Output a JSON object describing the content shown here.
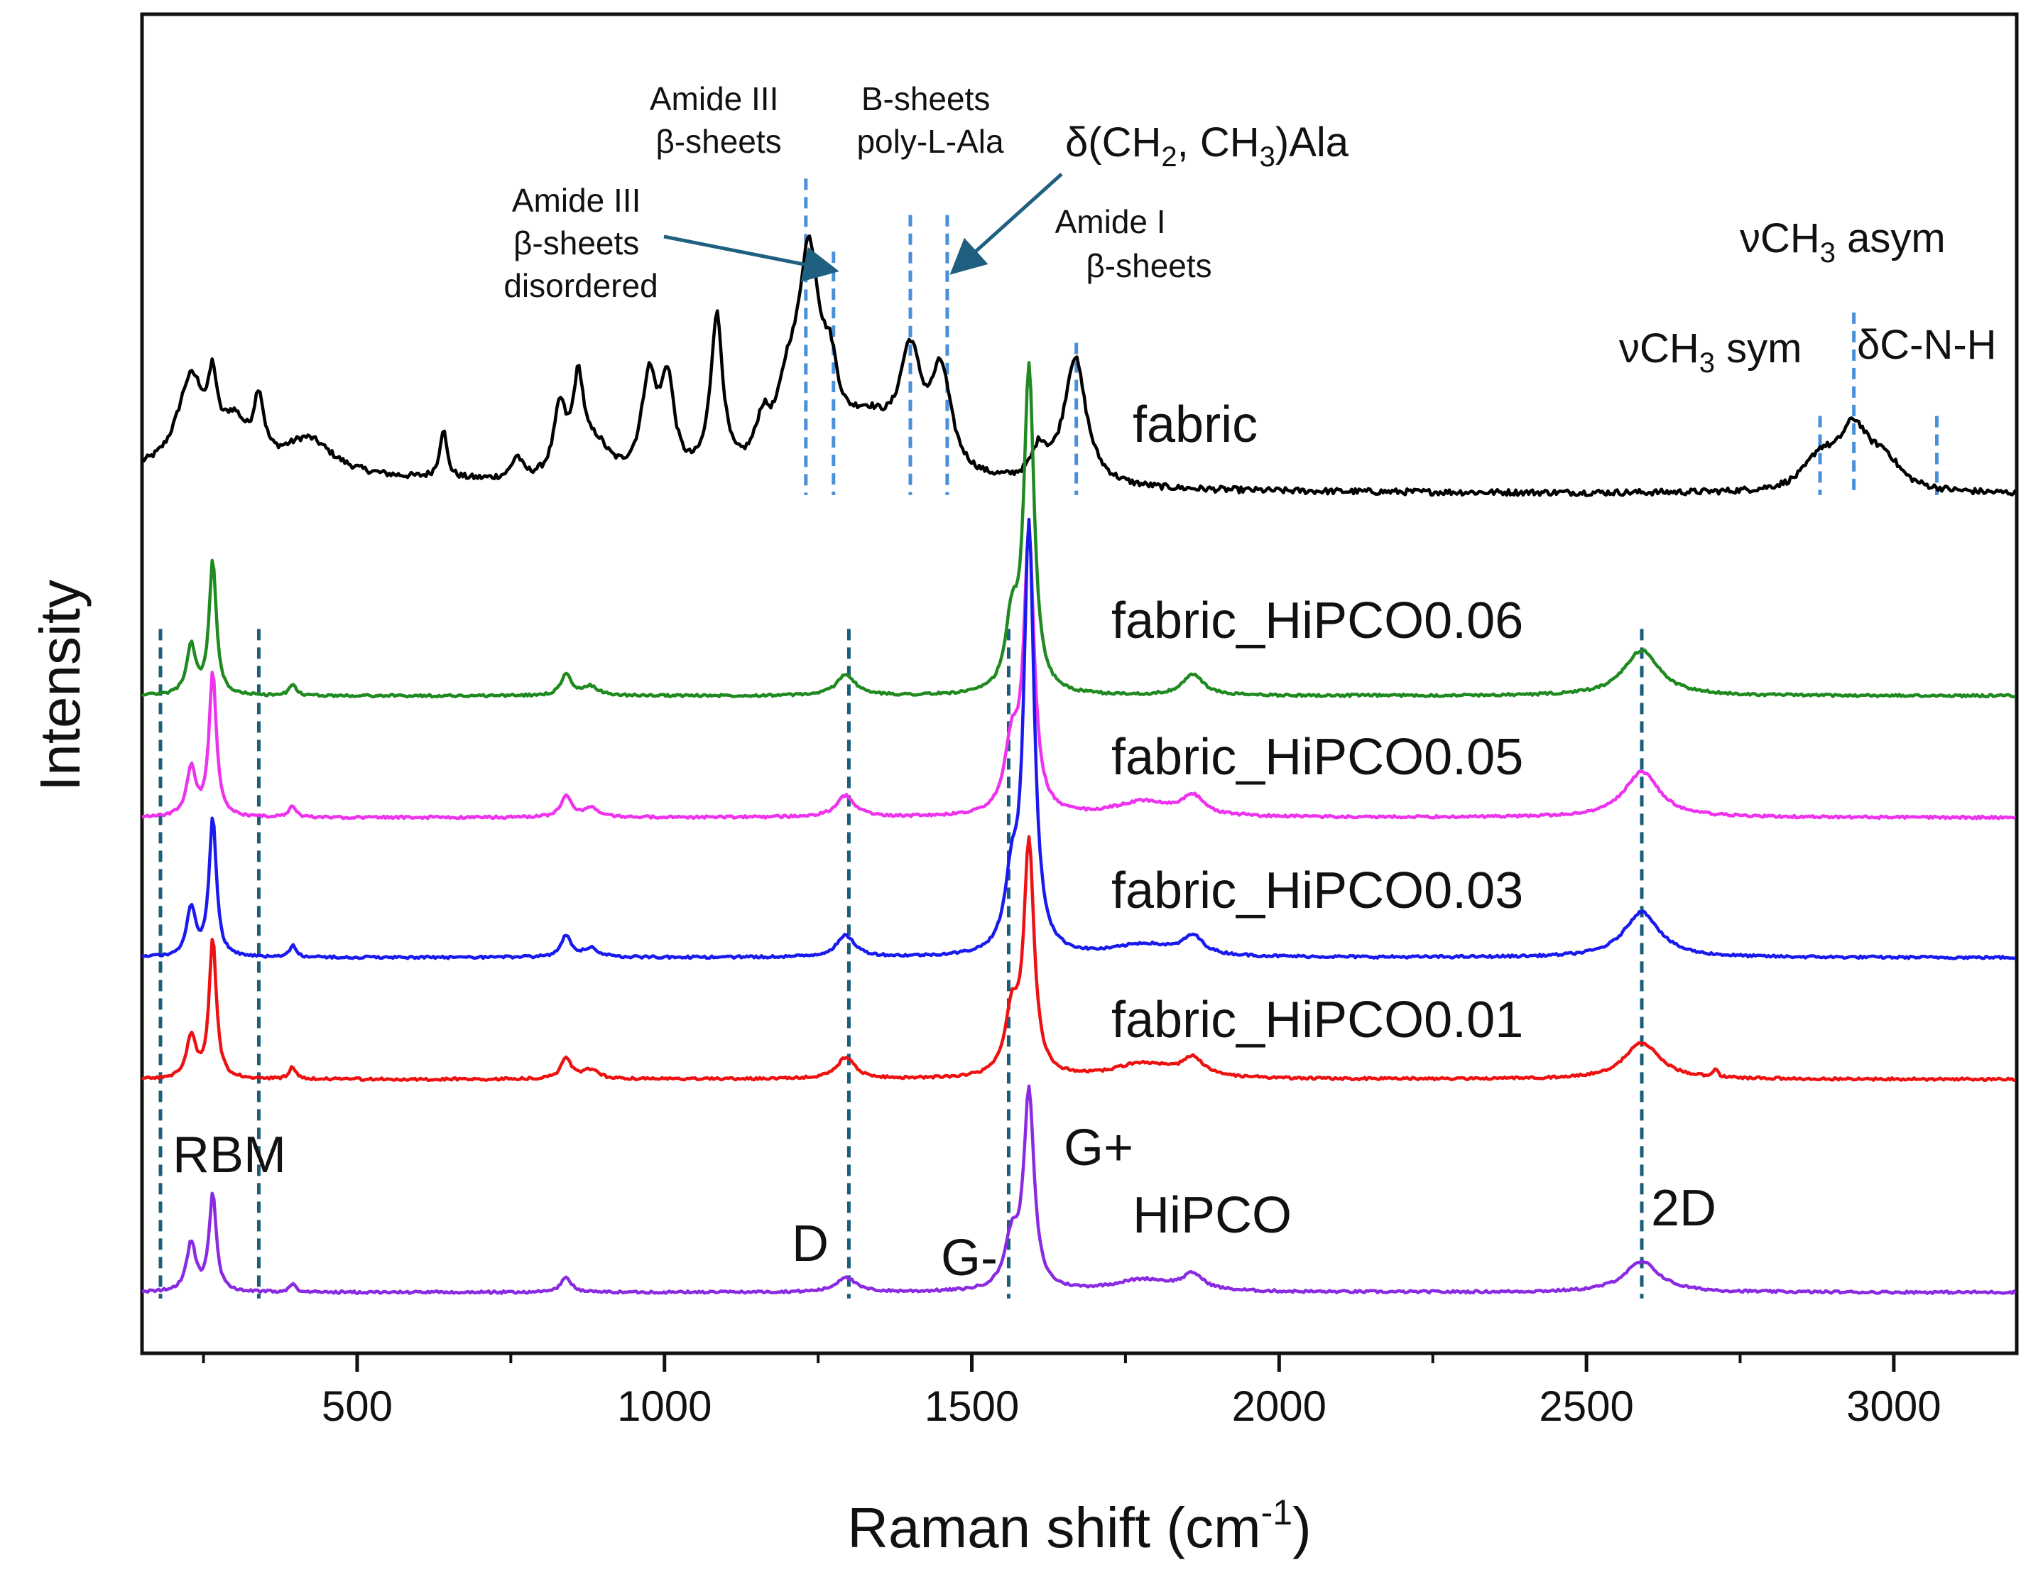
{
  "chart_data": {
    "type": "line",
    "title": "",
    "xlabel": "Raman shift (cm",
    "xlabel_sup": "-1",
    "xlabel_end": ")",
    "ylabel": "Intensity",
    "xlim": [
      150,
      3200
    ],
    "x_ticks": [
      500,
      1000,
      1500,
      2000,
      2500,
      3000
    ],
    "x_tick_labels": [
      "500",
      "1000",
      "1500",
      "2000",
      "2500",
      "3000"
    ],
    "grid": false,
    "legend": "inline labels at right of each trace",
    "series": [
      {
        "name": "fabric",
        "color": "#000000",
        "baseline": 9.6,
        "peaks": [
          [
            230,
            1.5,
            28
          ],
          [
            265,
            1.0,
            8
          ],
          [
            300,
            0.7,
            25
          ],
          [
            340,
            1.0,
            10
          ],
          [
            420,
            0.6,
            50
          ],
          [
            640,
            0.8,
            7
          ],
          [
            760,
            0.35,
            10
          ],
          [
            830,
            1.1,
            12
          ],
          [
            860,
            1.5,
            11
          ],
          [
            890,
            0.5,
            25
          ],
          [
            975,
            1.6,
            15
          ],
          [
            1005,
            1.5,
            13
          ],
          [
            1085,
            2.6,
            12
          ],
          [
            1160,
            0.7,
            15
          ],
          [
            1200,
            1.0,
            20
          ],
          [
            1235,
            3.4,
            22
          ],
          [
            1270,
            1.0,
            15
          ],
          [
            1330,
            0.9,
            55
          ],
          [
            1400,
            1.8,
            22
          ],
          [
            1450,
            1.6,
            20
          ],
          [
            1610,
            0.5,
            15
          ],
          [
            1668,
            2.1,
            22
          ],
          [
            2880,
            0.5,
            30
          ],
          [
            2935,
            1.0,
            30
          ],
          [
            2985,
            0.45,
            30
          ]
        ]
      },
      {
        "name": "fabric_HiPCO0.06",
        "color": "#1f8a1f",
        "baseline": 6.3,
        "peaks": [
          [
            230,
            0.8,
            9
          ],
          [
            265,
            2.2,
            7
          ],
          [
            395,
            0.2,
            6
          ],
          [
            840,
            0.35,
            10
          ],
          [
            880,
            0.15,
            15
          ],
          [
            1295,
            0.35,
            18
          ],
          [
            1565,
            1.1,
            12
          ],
          [
            1593,
            5.3,
            10
          ],
          [
            1860,
            0.35,
            20
          ],
          [
            2590,
            0.75,
            35
          ]
        ]
      },
      {
        "name": "fabric_HiPCO0.05",
        "color": "#ee33ee",
        "baseline": 4.3,
        "peaks": [
          [
            230,
            0.8,
            9
          ],
          [
            265,
            2.4,
            7
          ],
          [
            395,
            0.2,
            6
          ],
          [
            840,
            0.35,
            10
          ],
          [
            880,
            0.15,
            15
          ],
          [
            1295,
            0.35,
            18
          ],
          [
            1565,
            1.1,
            14
          ],
          [
            1593,
            4.5,
            10
          ],
          [
            1780,
            0.25,
            60
          ],
          [
            1860,
            0.3,
            20
          ],
          [
            2590,
            0.75,
            35
          ]
        ]
      },
      {
        "name": "fabric_HiPCO0.03",
        "color": "#1a1aee",
        "baseline": 2.0,
        "peaks": [
          [
            230,
            0.8,
            9
          ],
          [
            265,
            2.3,
            7
          ],
          [
            395,
            0.2,
            6
          ],
          [
            840,
            0.35,
            10
          ],
          [
            880,
            0.15,
            15
          ],
          [
            1295,
            0.35,
            18
          ],
          [
            1565,
            1.1,
            13
          ],
          [
            1593,
            7.0,
            10
          ],
          [
            1780,
            0.2,
            60
          ],
          [
            1860,
            0.3,
            20
          ],
          [
            2590,
            0.75,
            35
          ]
        ]
      },
      {
        "name": "fabric_HiPCO0.01",
        "color": "#ee1111",
        "baseline": 0.0,
        "peaks": [
          [
            230,
            0.7,
            9
          ],
          [
            265,
            2.3,
            7
          ],
          [
            395,
            0.2,
            6
          ],
          [
            840,
            0.35,
            10
          ],
          [
            880,
            0.15,
            15
          ],
          [
            1295,
            0.35,
            18
          ],
          [
            1565,
            1.0,
            13
          ],
          [
            1593,
            3.8,
            10
          ],
          [
            1780,
            0.25,
            60
          ],
          [
            1860,
            0.3,
            20
          ],
          [
            2590,
            0.6,
            35
          ],
          [
            2710,
            0.15,
            4
          ]
        ]
      },
      {
        "name": "HiPCO",
        "color": "#8a2be2",
        "baseline": -3.5,
        "peaks": [
          [
            230,
            0.8,
            9
          ],
          [
            265,
            1.6,
            7
          ],
          [
            395,
            0.15,
            6
          ],
          [
            840,
            0.25,
            10
          ],
          [
            1295,
            0.25,
            18
          ],
          [
            1565,
            0.8,
            14
          ],
          [
            1593,
            3.2,
            10
          ],
          [
            1780,
            0.2,
            60
          ],
          [
            1860,
            0.25,
            20
          ],
          [
            2590,
            0.5,
            35
          ]
        ]
      }
    ],
    "reference_lines": {
      "color": "#1b5e7a",
      "x": [
        180,
        340,
        1300,
        1560,
        2590
      ]
    },
    "annotation_lines": {
      "color": "#4a90d9",
      "x": [
        1230,
        1275,
        1400,
        1460,
        1670,
        2880,
        2935,
        3070
      ]
    },
    "band_labels": [
      "RBM",
      "D",
      "G-",
      "G+",
      "2D"
    ],
    "annotations": [
      {
        "id": "amide-iii-beta",
        "lines": [
          "Amide III",
          "β-sheets"
        ]
      },
      {
        "id": "amide-iii-disordered",
        "lines": [
          "Amide III",
          "β-sheets",
          "disordered"
        ]
      },
      {
        "id": "b-sheets-ala",
        "lines": [
          "B-sheets",
          "poly-L-Ala"
        ]
      },
      {
        "id": "delta-ch2-ch3",
        "text": "δ(CH",
        "sub1": "2",
        "mid": ", CH",
        "sub2": "3",
        "end": ")Ala"
      },
      {
        "id": "amide-i",
        "lines": [
          "Amide I",
          "β-sheets"
        ]
      },
      {
        "id": "nu-ch3-asym",
        "text": "νCH",
        "sub": "3",
        "end": " asym"
      },
      {
        "id": "nu-ch3-sym",
        "text": "νCH",
        "sub": "3",
        "end": " sym"
      },
      {
        "id": "delta-cnh",
        "text": "δC-N-H"
      }
    ]
  }
}
